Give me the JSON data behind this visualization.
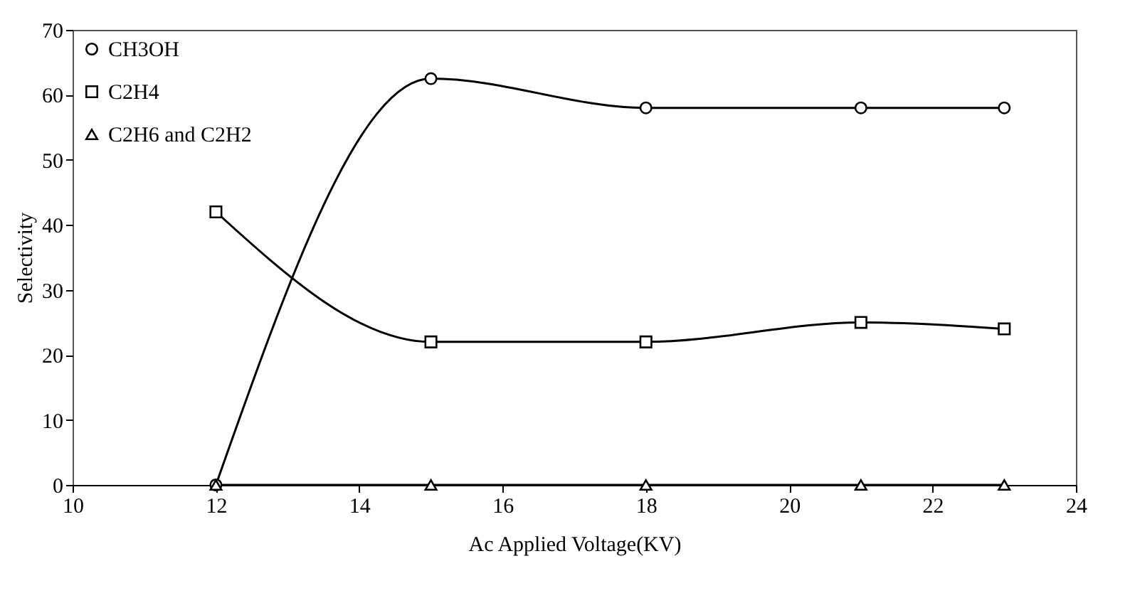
{
  "chart_data": {
    "type": "line",
    "xlabel": "Ac Applied Voltage(KV)",
    "ylabel": "Selectivity",
    "x": [
      12,
      15,
      18,
      21,
      23
    ],
    "series": [
      {
        "name": "CH3OH",
        "color": "#000000",
        "marker": "circle",
        "values": [
          0,
          62.5,
          58,
          58,
          58
        ]
      },
      {
        "name": "C2H4",
        "color": "#000000",
        "marker": "square",
        "values": [
          42,
          22,
          22,
          25,
          24
        ]
      },
      {
        "name": "C2H6 and C2H2",
        "color": "#000000",
        "marker": "triangle",
        "values": [
          0,
          0,
          0,
          0,
          0
        ]
      }
    ],
    "xlim": [
      10,
      24
    ],
    "xticks": [
      10,
      12,
      14,
      16,
      18,
      20,
      22,
      24
    ],
    "ylim": [
      0,
      70
    ],
    "yticks": [
      0,
      10,
      20,
      30,
      40,
      50,
      60,
      70
    ],
    "grid": false,
    "legend": "top left",
    "line_style": "solid"
  }
}
